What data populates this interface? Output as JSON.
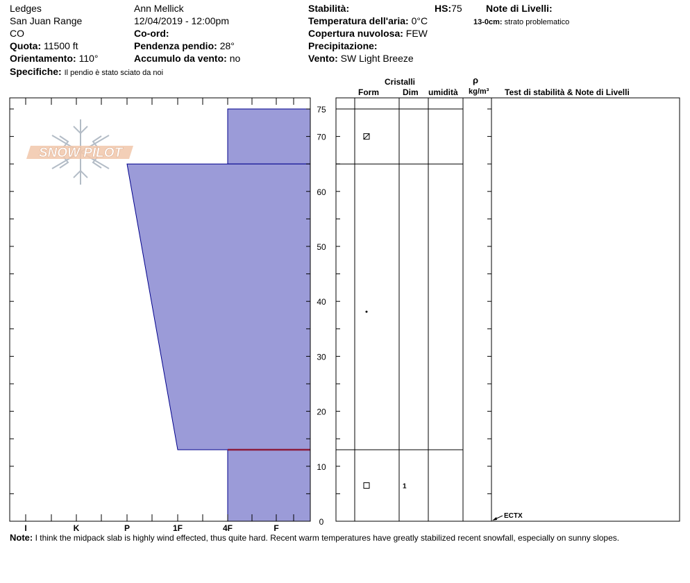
{
  "header": {
    "location": "Ledges",
    "range": "San Juan Range",
    "state": "CO",
    "quota_label": "Quota:",
    "quota_value": "11500 ft",
    "orient_label": "Orientamento:",
    "orient_value": "110°",
    "specifiche_label": "Specifiche:",
    "specifiche_value": "Il pendio è stato sciato da noi",
    "observer": "Ann Mellick",
    "datetime": "12/04/2019 - 12:00pm",
    "coord_label": "Co-ord:",
    "pendenza_label": "Pendenza pendio:",
    "pendenza_value": "28°",
    "accumulo_label": "Accumulo da vento:",
    "accumulo_value": "no",
    "stabilita_label": "Stabilità:",
    "hs_label": "HS:",
    "hs_value": "75",
    "temp_label": "Temperatura dell'aria:",
    "temp_value": "0°C",
    "copertura_label": "Copertura nuvolosa:",
    "copertura_value": "FEW",
    "precip_label": "Precipitazione:",
    "vento_label": "Vento:",
    "vento_value": "SW Light Breeze",
    "note_livelli_label": "Note di Livelli:",
    "note_livelli_range": "13-0cm:",
    "note_livelli_value": "strato problematico"
  },
  "logo": {
    "text": "SNOW PILOT"
  },
  "columns": {
    "cristalli": "Cristalli",
    "form": "Form",
    "dim": "Dim",
    "umidita": "umidità",
    "rho": "ρ",
    "density_unit": "kg/m³",
    "test_notes": "Test di stabilità & Note di Livelli"
  },
  "footer": {
    "note_label": "Note:",
    "note_text": "I think the midpack slab is highly wind effected, thus quite hard. Recent warm temperatures have greatly stabilized recent snowfall, especially on sunny slopes."
  },
  "chart_data": {
    "type": "area",
    "x_categories": [
      "I",
      "K",
      "P",
      "1F",
      "4F",
      "F"
    ],
    "y_ticks": [
      0,
      10,
      20,
      30,
      40,
      50,
      60,
      70,
      75
    ],
    "ylim": [
      0,
      75
    ],
    "layers": [
      {
        "top": 75,
        "bottom": 65,
        "hardness_top": "4F",
        "hardness_bottom": "4F",
        "form": "faceted-rounded",
        "size": ""
      },
      {
        "top": 65,
        "bottom": 13,
        "hardness_top": "P",
        "hardness_bottom": "1F",
        "form": "precipitation-particles",
        "size": ""
      },
      {
        "top": 13,
        "bottom": 0,
        "hardness_top": "4F",
        "hardness_bottom": "4F",
        "form": "faceted",
        "size": "1"
      }
    ],
    "problem_layer_height": 13,
    "tests": [
      {
        "height": 0,
        "label": "ECTX"
      }
    ],
    "colors": {
      "fill": "#9b9bd8",
      "outline": "#00008b",
      "problem": "#8b1a3a"
    }
  }
}
